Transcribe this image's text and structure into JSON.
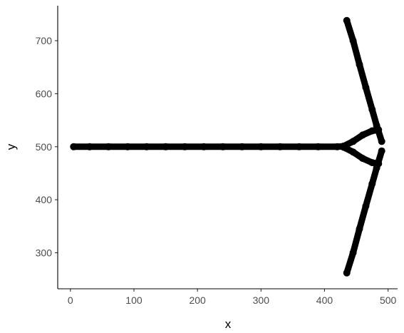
{
  "chart_data": {
    "type": "scatter",
    "xlabel": "x",
    "ylabel": "y",
    "xlim": [
      -20,
      515
    ],
    "ylim": [
      232,
      766
    ],
    "x_ticks": [
      0,
      100,
      200,
      300,
      400,
      500
    ],
    "y_ticks": [
      300,
      400,
      500,
      600,
      700
    ],
    "x_tick_labels": [
      "0",
      "100",
      "200",
      "300",
      "400",
      "500"
    ],
    "y_tick_labels": [
      "300",
      "400",
      "500",
      "600",
      "700"
    ],
    "grid": false,
    "legend": "none",
    "point_color": "#000000",
    "series": [
      {
        "description": "horizontal band",
        "points": [
          [
            5,
            500
          ],
          [
            30,
            500
          ],
          [
            60,
            500
          ],
          [
            90,
            500
          ],
          [
            120,
            500
          ],
          [
            150,
            500
          ],
          [
            180,
            500
          ],
          [
            210,
            500
          ],
          [
            240,
            500
          ],
          [
            270,
            500
          ],
          [
            300,
            500
          ],
          [
            330,
            500
          ],
          [
            360,
            500
          ],
          [
            390,
            500
          ],
          [
            420,
            500
          ],
          [
            430,
            501
          ]
        ]
      },
      {
        "description": "upper spike",
        "points": [
          [
            435,
            738
          ],
          [
            445,
            700
          ],
          [
            455,
            655
          ],
          [
            465,
            612
          ],
          [
            475,
            570
          ],
          [
            482,
            540
          ],
          [
            490,
            510
          ]
        ]
      },
      {
        "description": "lower spike",
        "points": [
          [
            435,
            262
          ],
          [
            445,
            300
          ],
          [
            455,
            345
          ],
          [
            465,
            388
          ],
          [
            475,
            430
          ],
          [
            482,
            460
          ],
          [
            490,
            492
          ]
        ]
      },
      {
        "description": "upper fork",
        "points": [
          [
            430,
            501
          ],
          [
            445,
            510
          ],
          [
            460,
            522
          ],
          [
            475,
            530
          ],
          [
            485,
            532
          ]
        ]
      },
      {
        "description": "lower fork",
        "points": [
          [
            430,
            499
          ],
          [
            445,
            490
          ],
          [
            460,
            478
          ],
          [
            475,
            470
          ],
          [
            485,
            468
          ]
        ]
      }
    ]
  }
}
